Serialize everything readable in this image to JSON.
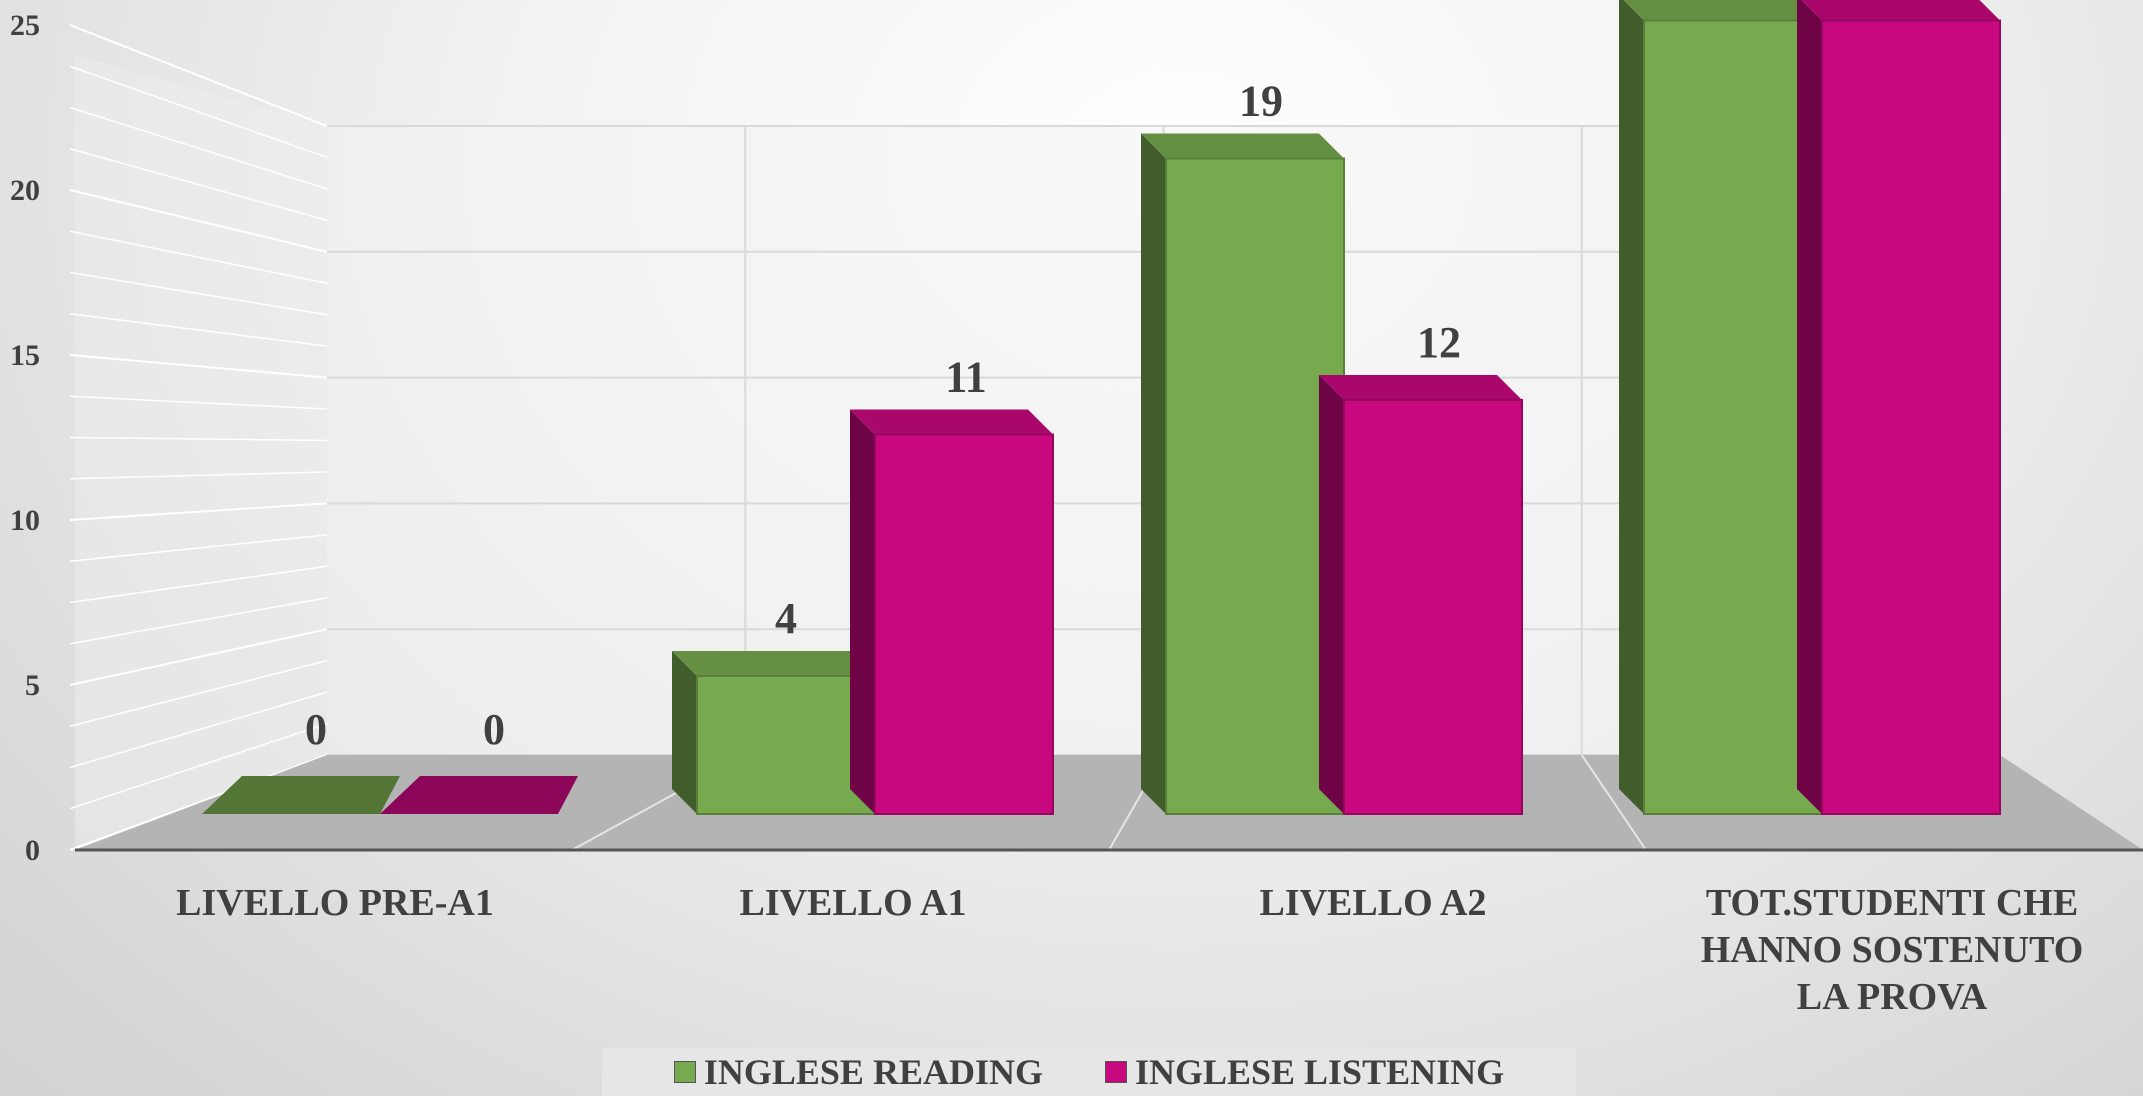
{
  "chart_data": {
    "type": "bar",
    "style": "3d-clustered-column",
    "categories": [
      [
        "LIVELLO PRE-A1"
      ],
      [
        "LIVELLO A1"
      ],
      [
        "LIVELLO A2"
      ],
      [
        "TOT.STUDENTI CHE",
        "HANNO SOSTENUTO",
        "LA PROVA"
      ]
    ],
    "series": [
      {
        "name": "INGLESE READING",
        "values": [
          0,
          4,
          19,
          23
        ],
        "color": "#77a94f"
      },
      {
        "name": "INGLESE LISTENING",
        "values": [
          0,
          11,
          12,
          23
        ],
        "color": "#c8087f"
      }
    ],
    "y_ticks": [
      "0",
      "5",
      "10",
      "15",
      "20",
      "25"
    ],
    "ylim": [
      0,
      25
    ],
    "grid": true,
    "legend_position": "bottom",
    "data_labels": true
  }
}
